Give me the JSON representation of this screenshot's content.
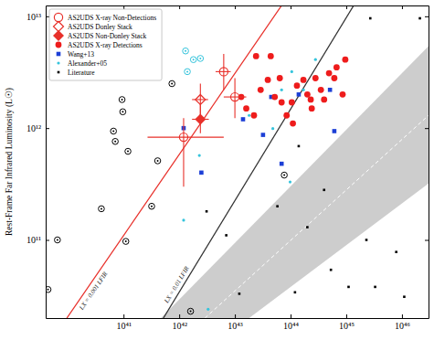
{
  "chart_data": {
    "type": "scatter",
    "y_label": "Rest-Frame Far Infrared Luminosity (L☉)",
    "log": true,
    "legend": "upper left",
    "xlim": [
      4e+39,
      3e+46
    ],
    "ylim": [
      20000000000.0,
      12500000000000.0
    ],
    "xticks": [
      {
        "value": 1e+41,
        "label": "10⁴¹"
      },
      {
        "value": 1e+42,
        "label": "10⁴²"
      },
      {
        "value": 1e+43,
        "label": "10⁴³"
      },
      {
        "value": 1e+44,
        "label": "10⁴⁴"
      },
      {
        "value": 1e+45,
        "label": "10⁴⁵"
      },
      {
        "value": 1e+46,
        "label": "10⁴⁶"
      }
    ],
    "yticks": [
      {
        "value": 100000000000.0,
        "label": "10¹¹"
      },
      {
        "value": 1000000000000.0,
        "label": "10¹²"
      },
      {
        "value": 10000000000000.0,
        "label": "10¹³"
      }
    ],
    "series": [
      {
        "name": "AS2UDS X-ray Non-Detections",
        "color": "#e8302a",
        "marker": "open-circle",
        "x": [
          1.2e+42,
          6.3e+42,
          1e+43
        ],
        "y": [
          830000000000.0,
          3200000000000.0,
          1900000000000.0
        ],
        "xerr_minus": [
          9.3e+41,
          1.8e+42,
          3.7e+42
        ],
        "xerr_plus": [
          5.1e+42,
          2.1e+42,
          6e+42
        ],
        "yerr_minus": [
          530000000000.0,
          1000000000000.0,
          670000000000.0
        ],
        "yerr_plus": [
          400000000000.0,
          1400000000000.0,
          900000000000.0
        ]
      },
      {
        "name": "AS2UDS Donley Stack",
        "color": "#e8302a",
        "marker": "open-diamond",
        "x": [
          2.4e+42
        ],
        "y": [
          1800000000000.0
        ],
        "xerr_minus": [
          7e+41
        ],
        "xerr_plus": [
          9e+41
        ],
        "yerr_minus": [
          500000000000.0
        ],
        "yerr_plus": [
          700000000000.0
        ]
      },
      {
        "name": "AS2UDS Non-Donley Stack",
        "color": "#e8302a",
        "marker": "diamond",
        "x": [
          2.4e+42
        ],
        "y": [
          1200000000000.0
        ],
        "xerr_minus": [
          7e+41
        ],
        "xerr_plus": [
          1e+42
        ],
        "yerr_minus": [
          300000000000.0
        ],
        "yerr_plus": [
          450000000000.0
        ]
      },
      {
        "name": "AS2UDS X-ray Detections",
        "color": "#ee1c1c",
        "marker": "circle",
        "x": [
          1.3e+43,
          1.6e+43,
          2.2e+43,
          2.4e+43,
          2.9e+43,
          3.9e+43,
          4.4e+43,
          5.2e+43,
          6.4e+43,
          6.9e+43,
          8.5e+43,
          1.05e+44,
          1.3e+44,
          1.7e+44,
          2e+44,
          2.3e+44,
          2.8e+44,
          3.5e+44,
          4e+44,
          4.9e+44,
          6.1e+44,
          6.7e+44,
          8.6e+44,
          9.6e+44,
          2.4e+44,
          1.1e+44
        ],
        "y": [
          1900000000000.0,
          1500000000000.0,
          1300000000000.0,
          4400000000000.0,
          2200000000000.0,
          2700000000000.0,
          4400000000000.0,
          1900000000000.0,
          2800000000000.0,
          1700000000000.0,
          1300000000000.0,
          1700000000000.0,
          2400000000000.0,
          2700000000000.0,
          2000000000000.0,
          1800000000000.0,
          2800000000000.0,
          2200000000000.0,
          1800000000000.0,
          3100000000000.0,
          2800000000000.0,
          3500000000000.0,
          2000000000000.0,
          4100000000000.0,
          1500000000000.0,
          1100000000000.0
        ]
      },
      {
        "name": "Wang+13",
        "color": "#1c3fd6",
        "marker": "square",
        "x": [
          1.2e+42,
          2.5e+42,
          1.4e+43,
          3.2e+43,
          4.5e+43,
          6.9e+43,
          1.4e+44,
          5.1e+44,
          6.1e+44
        ],
        "y": [
          1000000000000.0,
          400000000000.0,
          1200000000000.0,
          870000000000.0,
          1900000000000.0,
          480000000000.0,
          2000000000000.0,
          2200000000000.0,
          940000000000.0
        ]
      },
      {
        "name": "Alexander+05",
        "color": "#35c4dc",
        "marker": "dot",
        "x": [
          2.3e+42,
          1.2e+42,
          3.3e+42,
          1.8e+43,
          6.9e+43,
          1.05e+44,
          1.7e+44,
          2.8e+44,
          9.8e+43,
          4.8e+43
        ],
        "y": [
          570000000000.0,
          150000000000.0,
          24000000000.0,
          1300000000000.0,
          2200000000000.0,
          3200000000000.0,
          2200000000000.0,
          4100000000000.0,
          330000000000.0,
          990000000000.0
        ]
      },
      {
        "name": "Literature",
        "color": "#000000",
        "marker": "small-square",
        "x": [
          3.1e+42,
          7e+42,
          1.2e+43,
          5.8e+43,
          1.2e+44,
          2e+44,
          4e+44,
          5.3e+44,
          1.1e+45,
          2.3e+45,
          3.3e+45,
          7.9e+45,
          1.1e+46,
          2.7e+45,
          2.1e+46,
          1.4e+44
        ],
        "y": [
          180000000000.0,
          110000000000.0,
          33000000000.0,
          200000000000.0,
          34000000000.0,
          130000000000.0,
          280000000000.0,
          54000000000.0,
          38000000000.0,
          100000000000.0,
          38000000000.0,
          78000000000.0,
          31000000000.0,
          9600000000000.0,
          9600000000000.0,
          690000000000.0
        ]
      },
      {
        "color": "#000000",
        "marker": "circle-dot",
        "x": [
          4.4e+39,
          6.5e+39,
          6.6e+40,
          7.1e+40,
          9.4e+40,
          9.7e+40,
          1.2e+41,
          1.1e+41,
          3.2e+41,
          4.1e+41,
          7.4e+41,
          1.6e+42,
          7.7e+43,
          4e+40
        ],
        "y": [
          36000000000.0,
          100000000000.0,
          940000000000.0,
          760000000000.0,
          1800000000000.0,
          1400000000000.0,
          620000000000.0,
          97000000000.0,
          200000000000.0,
          510000000000.0,
          2500000000000.0,
          23000000000.0,
          380000000000.0,
          190000000000.0
        ]
      },
      {
        "color": "#35c4dc",
        "marker": "circle-dot",
        "x": [
          1.3e+42,
          1.8e+42,
          2.4e+42,
          1.4e+42
        ],
        "y": [
          4900000000000.0,
          4100000000000.0,
          4200000000000.0,
          3200000000000.0
        ]
      }
    ],
    "lines": [
      {
        "label": "LX = 0.001 LFIR",
        "color": "#e8302a",
        "line_style": "solid",
        "x": [
          9.6e+39,
          6.9e+43
        ],
        "y": [
          20000000000.0,
          12500000000000.0
        ]
      },
      {
        "label": "LX = 0.01 LFIR",
        "color": "#333333",
        "line_style": "solid",
        "x": [
          5.2e+41,
          1.36e+45
        ],
        "y": [
          20000000000.0,
          12500000000000.0
        ]
      }
    ],
    "band": {
      "color": "#c4c4c4",
      "upper": {
        "x": [
          4.7e+41,
          3e+46
        ],
        "y": [
          20000000000.0,
          5400000000000.0
        ]
      },
      "lower": {
        "x": [
          1.8e+43,
          3e+46
        ],
        "y": [
          20000000000.0,
          320000000000.0
        ]
      },
      "center": {
        "color": "#ffffff",
        "line_style": "dashed",
        "x": [
          2.9e+42,
          3e+46
        ],
        "y": [
          20000000000.0,
          1300000000000.0
        ]
      }
    }
  }
}
